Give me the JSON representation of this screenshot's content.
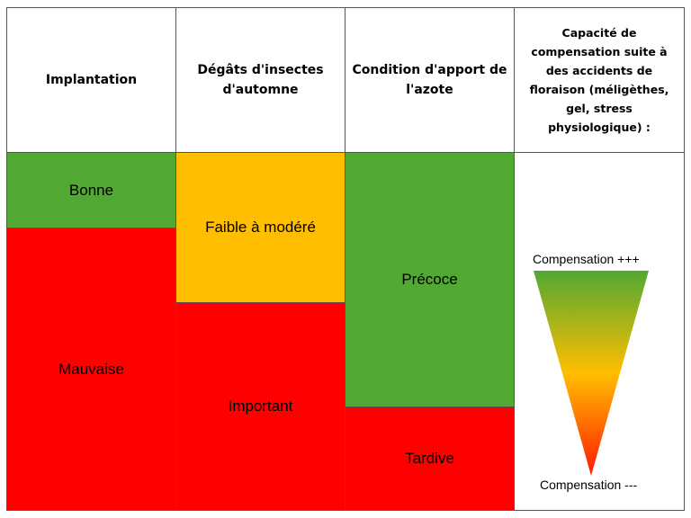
{
  "headers": {
    "col1": "Implantation",
    "col2": "Dégâts d'insectes d'automne",
    "col3": "Condition d'apport de l'azote",
    "col4": "Capacité de compensation suite à des accidents de floraison (méligèthes, gel, stress physiologique) :"
  },
  "implantation": {
    "good": "Bonne",
    "bad": "Mauvaise"
  },
  "insect_damage": {
    "low": "Faible à modéré",
    "high": "Important"
  },
  "nitrogen": {
    "early": "Précoce",
    "late": "Tardive"
  },
  "compensation": {
    "top_label": "Compensation +++",
    "bottom_label": "Compensation ---",
    "icon": "gradient-triangle-icon",
    "gradient_colors": [
      "#51a832",
      "#ffbf00",
      "#ff1a00"
    ]
  },
  "colors": {
    "green": "#51a832",
    "red": "#ff0000",
    "amber": "#ffbf00",
    "border": "#555555"
  }
}
